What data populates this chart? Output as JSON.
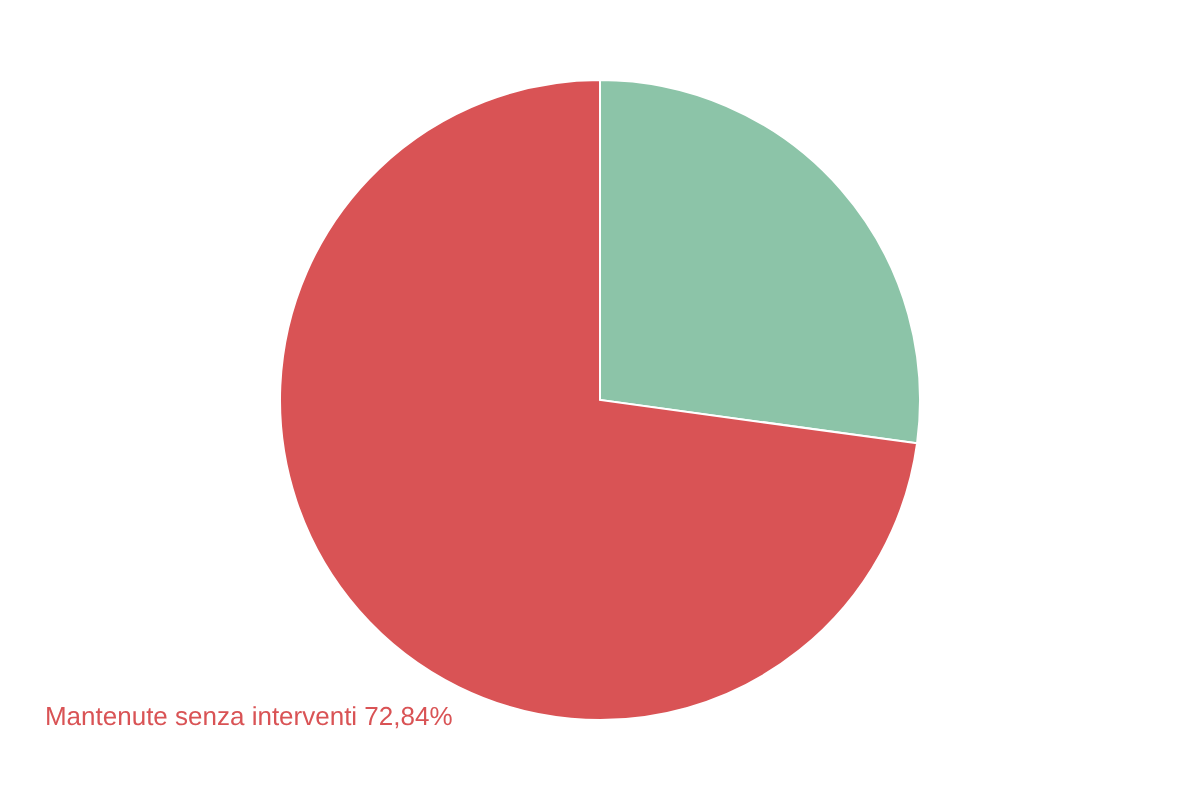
{
  "chart_data": {
    "type": "pie",
    "categories": [
      null,
      "Mantenute senza interventi"
    ],
    "values": [
      27.16,
      72.84
    ],
    "colors": [
      "#8cc4a8",
      "#d95355"
    ],
    "value_labels": [
      null,
      "72,84%"
    ]
  }
}
